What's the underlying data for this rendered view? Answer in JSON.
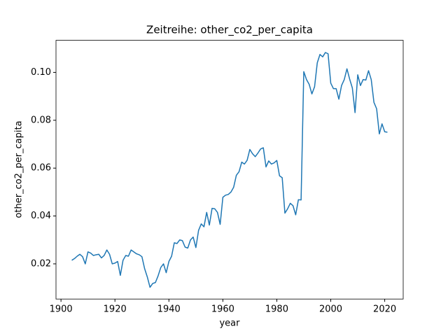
{
  "chart_data": {
    "type": "line",
    "title": "Zeitreihe: other_co2_per_capita",
    "xlabel": "year",
    "ylabel": "other_co2_per_capita",
    "x": [
      1904,
      1905,
      1906,
      1907,
      1908,
      1909,
      1910,
      1911,
      1912,
      1913,
      1914,
      1915,
      1916,
      1917,
      1918,
      1919,
      1920,
      1921,
      1922,
      1923,
      1924,
      1925,
      1926,
      1927,
      1928,
      1929,
      1930,
      1931,
      1932,
      1933,
      1934,
      1935,
      1936,
      1937,
      1938,
      1939,
      1940,
      1941,
      1942,
      1943,
      1944,
      1945,
      1946,
      1947,
      1948,
      1949,
      1950,
      1951,
      1952,
      1953,
      1954,
      1955,
      1956,
      1957,
      1958,
      1959,
      1960,
      1961,
      1962,
      1963,
      1964,
      1965,
      1966,
      1967,
      1968,
      1969,
      1970,
      1971,
      1972,
      1973,
      1974,
      1975,
      1976,
      1977,
      1978,
      1979,
      1980,
      1981,
      1982,
      1983,
      1984,
      1985,
      1986,
      1987,
      1988,
      1989,
      1990,
      1991,
      1992,
      1993,
      1994,
      1995,
      1996,
      1997,
      1998,
      1999,
      2000,
      2001,
      2002,
      2003,
      2004,
      2005,
      2006,
      2007,
      2008,
      2009,
      2010,
      2011,
      2012,
      2013,
      2014,
      2015,
      2016,
      2017,
      2018,
      2019,
      2020,
      2021
    ],
    "series": [
      {
        "name": "other_co2_per_capita",
        "color": "#1f77b4",
        "values": [
          0.0215,
          0.0222,
          0.0232,
          0.024,
          0.023,
          0.02,
          0.025,
          0.0245,
          0.0235,
          0.0238,
          0.024,
          0.0225,
          0.0235,
          0.0258,
          0.024,
          0.02,
          0.0203,
          0.021,
          0.0152,
          0.0215,
          0.0235,
          0.0232,
          0.0258,
          0.025,
          0.0242,
          0.0238,
          0.023,
          0.018,
          0.0145,
          0.0102,
          0.0118,
          0.0122,
          0.015,
          0.0185,
          0.02,
          0.0163,
          0.021,
          0.0232,
          0.0288,
          0.0285,
          0.03,
          0.0297,
          0.027,
          0.0266,
          0.03,
          0.0312,
          0.0268,
          0.034,
          0.0367,
          0.0355,
          0.0415,
          0.0362,
          0.0432,
          0.043,
          0.0415,
          0.0365,
          0.0478,
          0.0487,
          0.049,
          0.05,
          0.052,
          0.057,
          0.0585,
          0.0625,
          0.0617,
          0.0633,
          0.0678,
          0.066,
          0.0648,
          0.0663,
          0.068,
          0.0685,
          0.0605,
          0.063,
          0.0617,
          0.0622,
          0.0632,
          0.0568,
          0.056,
          0.0412,
          0.043,
          0.0453,
          0.0443,
          0.0405,
          0.0468,
          0.0467,
          0.1003,
          0.097,
          0.095,
          0.091,
          0.094,
          0.104,
          0.1075,
          0.1065,
          0.1083,
          0.1078,
          0.0955,
          0.0932,
          0.0932,
          0.0888,
          0.0945,
          0.097,
          0.1015,
          0.0972,
          0.0935,
          0.0832,
          0.099,
          0.0945,
          0.097,
          0.0968,
          0.1007,
          0.097,
          0.0875,
          0.0848,
          0.0743,
          0.0785,
          0.0752,
          0.075
        ]
      }
    ],
    "xlim": [
      1898.15,
      2026.85
    ],
    "ylim": [
      0.0053,
      0.1134
    ],
    "xticks": [
      1900,
      1920,
      1940,
      1960,
      1980,
      2000,
      2020
    ],
    "yticks": [
      0.02,
      0.04,
      0.06,
      0.08,
      {
        "value": 0.1,
        "label": "0.10"
      }
    ],
    "grid": false
  }
}
